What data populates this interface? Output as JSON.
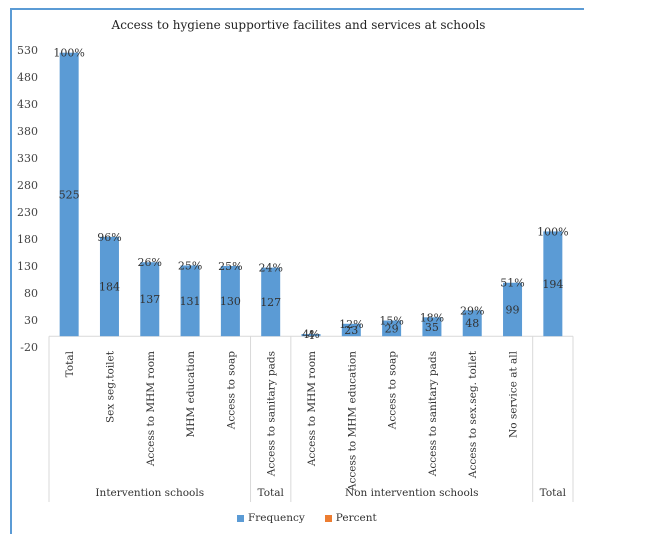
{
  "chart_data": {
    "type": "bar",
    "title": "Access to hygiene  supportive  facilites  and  services at schools",
    "ylim": [
      -20,
      530
    ],
    "yticks": [
      -20,
      30,
      80,
      130,
      180,
      230,
      280,
      330,
      380,
      430,
      480,
      530
    ],
    "grid": false,
    "legend_position": "bottom",
    "categories": [
      "Total",
      "Sex seg.toilet",
      "Access to MHM  room",
      "MHM education",
      "Access to soap",
      "Access to sanitary pads",
      "Access to MHM room",
      "Access to MHM education",
      "Access to soap",
      "Access to sanitary pads",
      "Access to sex.seg. toilet",
      "No service at all",
      ""
    ],
    "groups": [
      {
        "label": "Intervention schools",
        "from": 0,
        "to": 4
      },
      {
        "label": "Total",
        "from": 5,
        "to": 5
      },
      {
        "label": "Non intervention  schools",
        "from": 6,
        "to": 11
      },
      {
        "label": "Total",
        "from": 12,
        "to": 12
      }
    ],
    "series": [
      {
        "name": "Frequency",
        "color": "#5b9bd5",
        "values": [
          525,
          184,
          137,
          131,
          130,
          127,
          4,
          23,
          29,
          35,
          48,
          99,
          194
        ]
      },
      {
        "name": "Percent",
        "color": "#ed7d31",
        "values": [
          100,
          96,
          26,
          25,
          25,
          24,
          4,
          12,
          15,
          18,
          29,
          51,
          100
        ]
      }
    ],
    "value_labels": [
      "525",
      "184",
      "137",
      "131",
      "130",
      "127",
      "4",
      "23",
      "29",
      "35",
      "48",
      "99",
      "194"
    ],
    "percent_labels": [
      "100%",
      "96%",
      "26%",
      "25%",
      "25%",
      "24%",
      "4%",
      "12%",
      "15%",
      "18%",
      "29%",
      "51%",
      "100%"
    ]
  }
}
